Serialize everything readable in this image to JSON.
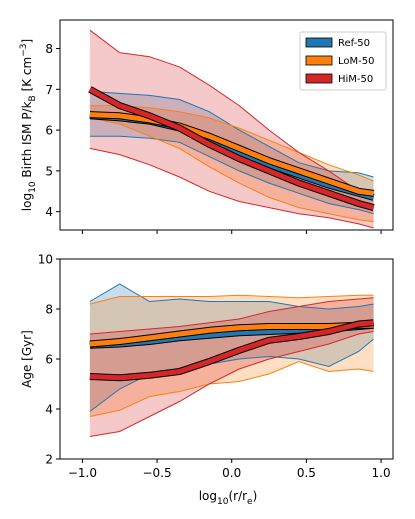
{
  "chart_data": [
    {
      "type": "line",
      "panel": "top",
      "x": [
        -0.95,
        -0.75,
        -0.55,
        -0.35,
        -0.15,
        0.05,
        0.25,
        0.45,
        0.65,
        0.85,
        0.95
      ],
      "ylabel_prefix": "log",
      "ylabel_sub": "10",
      "ylabel_main": " Birth ISM P/k",
      "ylabel_sub2": "B",
      "ylabel_units": " [K cm",
      "ylabel_sup": "−3",
      "ylabel_close": "]",
      "xlim": [
        -1.15,
        1.08
      ],
      "ylim": [
        3.55,
        8.7
      ],
      "yticks": [
        4,
        5,
        6,
        7,
        8
      ],
      "xticks": [
        -1.0,
        -0.5,
        0.0,
        0.5,
        1.0
      ],
      "legend": {
        "position": "top-right"
      },
      "series": [
        {
          "name": "Ref-50",
          "color": "#1f77b4",
          "median": [
            6.35,
            6.3,
            6.22,
            6.05,
            5.75,
            5.45,
            5.15,
            4.9,
            4.65,
            4.45,
            4.35
          ],
          "lower": [
            5.85,
            5.85,
            5.8,
            5.7,
            5.35,
            5.0,
            4.7,
            4.45,
            4.2,
            4.05,
            3.95
          ],
          "upper": [
            6.95,
            6.9,
            6.85,
            6.75,
            6.45,
            6.0,
            5.6,
            5.2,
            5.0,
            4.95,
            4.85
          ]
        },
        {
          "name": "LoM-50",
          "color": "#ff7f0e",
          "median": [
            6.38,
            6.35,
            6.25,
            6.1,
            5.85,
            5.55,
            5.25,
            5.0,
            4.75,
            4.5,
            4.45
          ],
          "lower": [
            6.3,
            6.15,
            5.85,
            5.55,
            5.1,
            4.7,
            4.35,
            4.1,
            3.95,
            3.8,
            3.75
          ],
          "upper": [
            6.6,
            6.6,
            6.55,
            6.45,
            6.3,
            6.05,
            5.75,
            5.45,
            5.15,
            4.9,
            4.75
          ]
        },
        {
          "name": "HiM-50",
          "color": "#d62728",
          "median": [
            7.0,
            6.6,
            6.35,
            6.05,
            5.65,
            5.3,
            5.0,
            4.7,
            4.45,
            4.2,
            4.1
          ],
          "lower": [
            5.55,
            5.4,
            5.15,
            4.85,
            4.5,
            4.25,
            4.1,
            3.95,
            3.85,
            3.7,
            3.6
          ],
          "upper": [
            8.45,
            7.9,
            7.8,
            7.55,
            7.1,
            6.6,
            6.0,
            5.45,
            5.0,
            4.5,
            4.35
          ]
        }
      ]
    },
    {
      "type": "line",
      "panel": "bottom",
      "x": [
        -0.95,
        -0.75,
        -0.55,
        -0.35,
        -0.15,
        0.05,
        0.25,
        0.45,
        0.65,
        0.85,
        0.95
      ],
      "ylabel": "Age [Gyr]",
      "xlabel_prefix": "log",
      "xlabel_sub": "10",
      "xlabel_main": "(r/r",
      "xlabel_sub2": "e",
      "xlabel_close": ")",
      "xlim": [
        -1.15,
        1.08
      ],
      "ylim": [
        2,
        10
      ],
      "yticks": [
        2,
        4,
        6,
        8,
        10
      ],
      "xticks": [
        -1.0,
        -0.5,
        0.0,
        0.5,
        1.0
      ],
      "xticklabels": [
        "−1.0",
        "−0.5",
        "0.0",
        "0.5",
        "1.0"
      ],
      "series": [
        {
          "name": "Ref-50",
          "color": "#1f77b4",
          "median": [
            6.55,
            6.6,
            6.7,
            6.85,
            6.95,
            7.05,
            7.1,
            7.15,
            7.2,
            7.3,
            7.35
          ],
          "lower": [
            3.9,
            4.8,
            5.4,
            5.6,
            5.8,
            6.0,
            6.1,
            6.0,
            5.7,
            6.3,
            6.8
          ],
          "upper": [
            8.3,
            9.0,
            8.3,
            8.4,
            8.3,
            8.3,
            8.3,
            8.1,
            8.0,
            8.1,
            8.2
          ]
        },
        {
          "name": "LoM-50",
          "color": "#ff7f0e",
          "median": [
            6.6,
            6.7,
            6.85,
            7.0,
            7.15,
            7.25,
            7.3,
            7.3,
            7.3,
            7.35,
            7.35
          ],
          "lower": [
            3.7,
            3.95,
            4.5,
            4.7,
            5.0,
            5.1,
            5.4,
            5.9,
            5.5,
            5.6,
            5.5
          ],
          "upper": [
            8.2,
            8.5,
            8.5,
            8.5,
            8.5,
            8.55,
            8.5,
            8.45,
            8.5,
            8.55,
            8.55
          ]
        },
        {
          "name": "HiM-50",
          "color": "#d62728",
          "median": [
            5.3,
            5.25,
            5.35,
            5.5,
            5.9,
            6.35,
            6.75,
            6.9,
            7.1,
            7.4,
            7.45
          ],
          "lower": [
            2.9,
            3.1,
            3.7,
            4.3,
            5.0,
            5.6,
            6.0,
            6.3,
            6.6,
            7.0,
            7.1
          ],
          "upper": [
            7.0,
            7.1,
            7.2,
            7.3,
            7.45,
            7.6,
            7.9,
            8.1,
            8.3,
            8.4,
            8.45
          ]
        }
      ]
    }
  ]
}
